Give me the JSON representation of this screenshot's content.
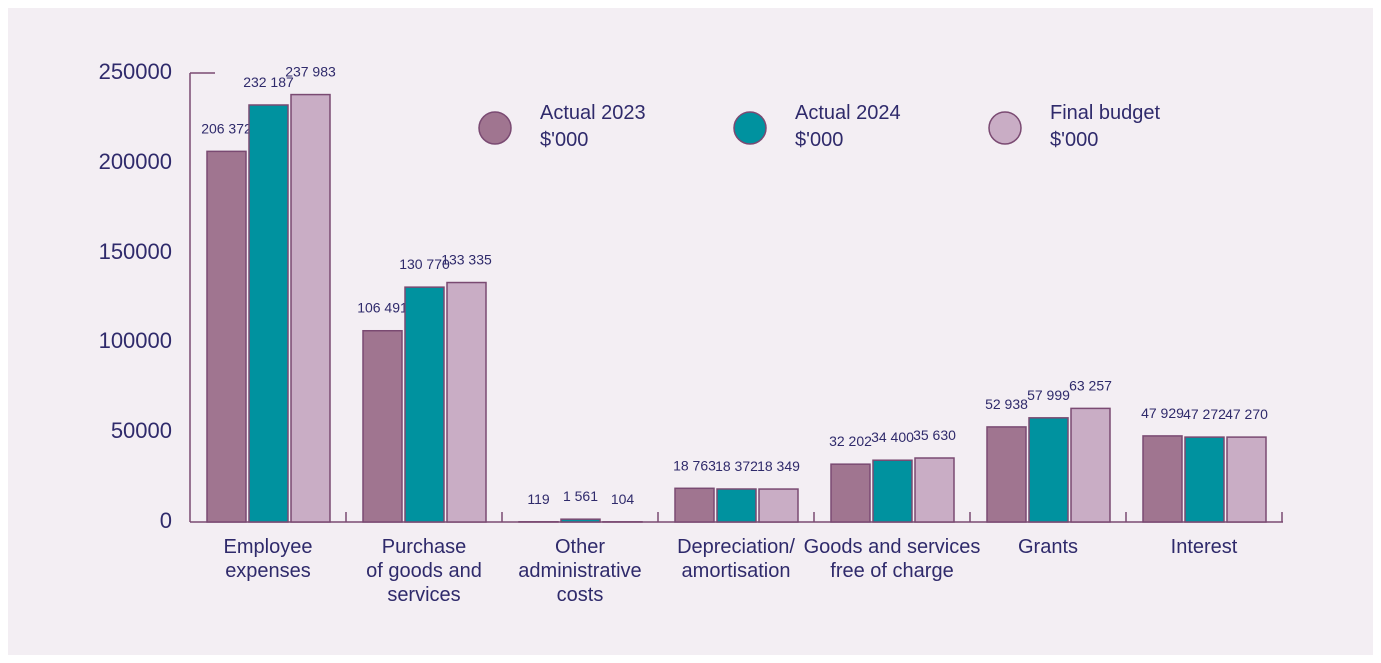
{
  "chart_data": {
    "type": "bar",
    "categories": [
      "Employee\nexpenses",
      "Purchase\nof goods and\nservices",
      "Other\nadministrative\ncosts",
      "Depreciation/\namortisation",
      "Goods and services\nfree of charge",
      "Grants",
      "Interest"
    ],
    "series": [
      {
        "name": "Actual 2023\n$'000",
        "color": "#a07590",
        "values": [
          206372,
          106491,
          119,
          18763,
          32202,
          52938,
          47929
        ],
        "value_labels": [
          "206 372",
          "106 491",
          "119",
          "18 763",
          "32 202",
          "52 938",
          "47 929"
        ]
      },
      {
        "name": "Actual 2024\n$'000",
        "color": "#00929f",
        "values": [
          232187,
          130770,
          1561,
          18372,
          34400,
          57999,
          47272
        ],
        "value_labels": [
          "232 187",
          "130 770",
          "1 561",
          "18 372",
          "34 400",
          "57 999",
          "47 272"
        ]
      },
      {
        "name": "Final budget\n$'000",
        "color": "#c9adc5",
        "values": [
          237983,
          133335,
          104,
          18349,
          35630,
          63257,
          47270
        ],
        "value_labels": [
          "237 983",
          "133 335",
          "104",
          "18 349",
          "35 630",
          "63 257",
          "47 270"
        ]
      }
    ],
    "ylim": [
      0,
      250000
    ],
    "yticks": [
      0,
      50000,
      100000,
      150000,
      200000,
      250000
    ]
  }
}
